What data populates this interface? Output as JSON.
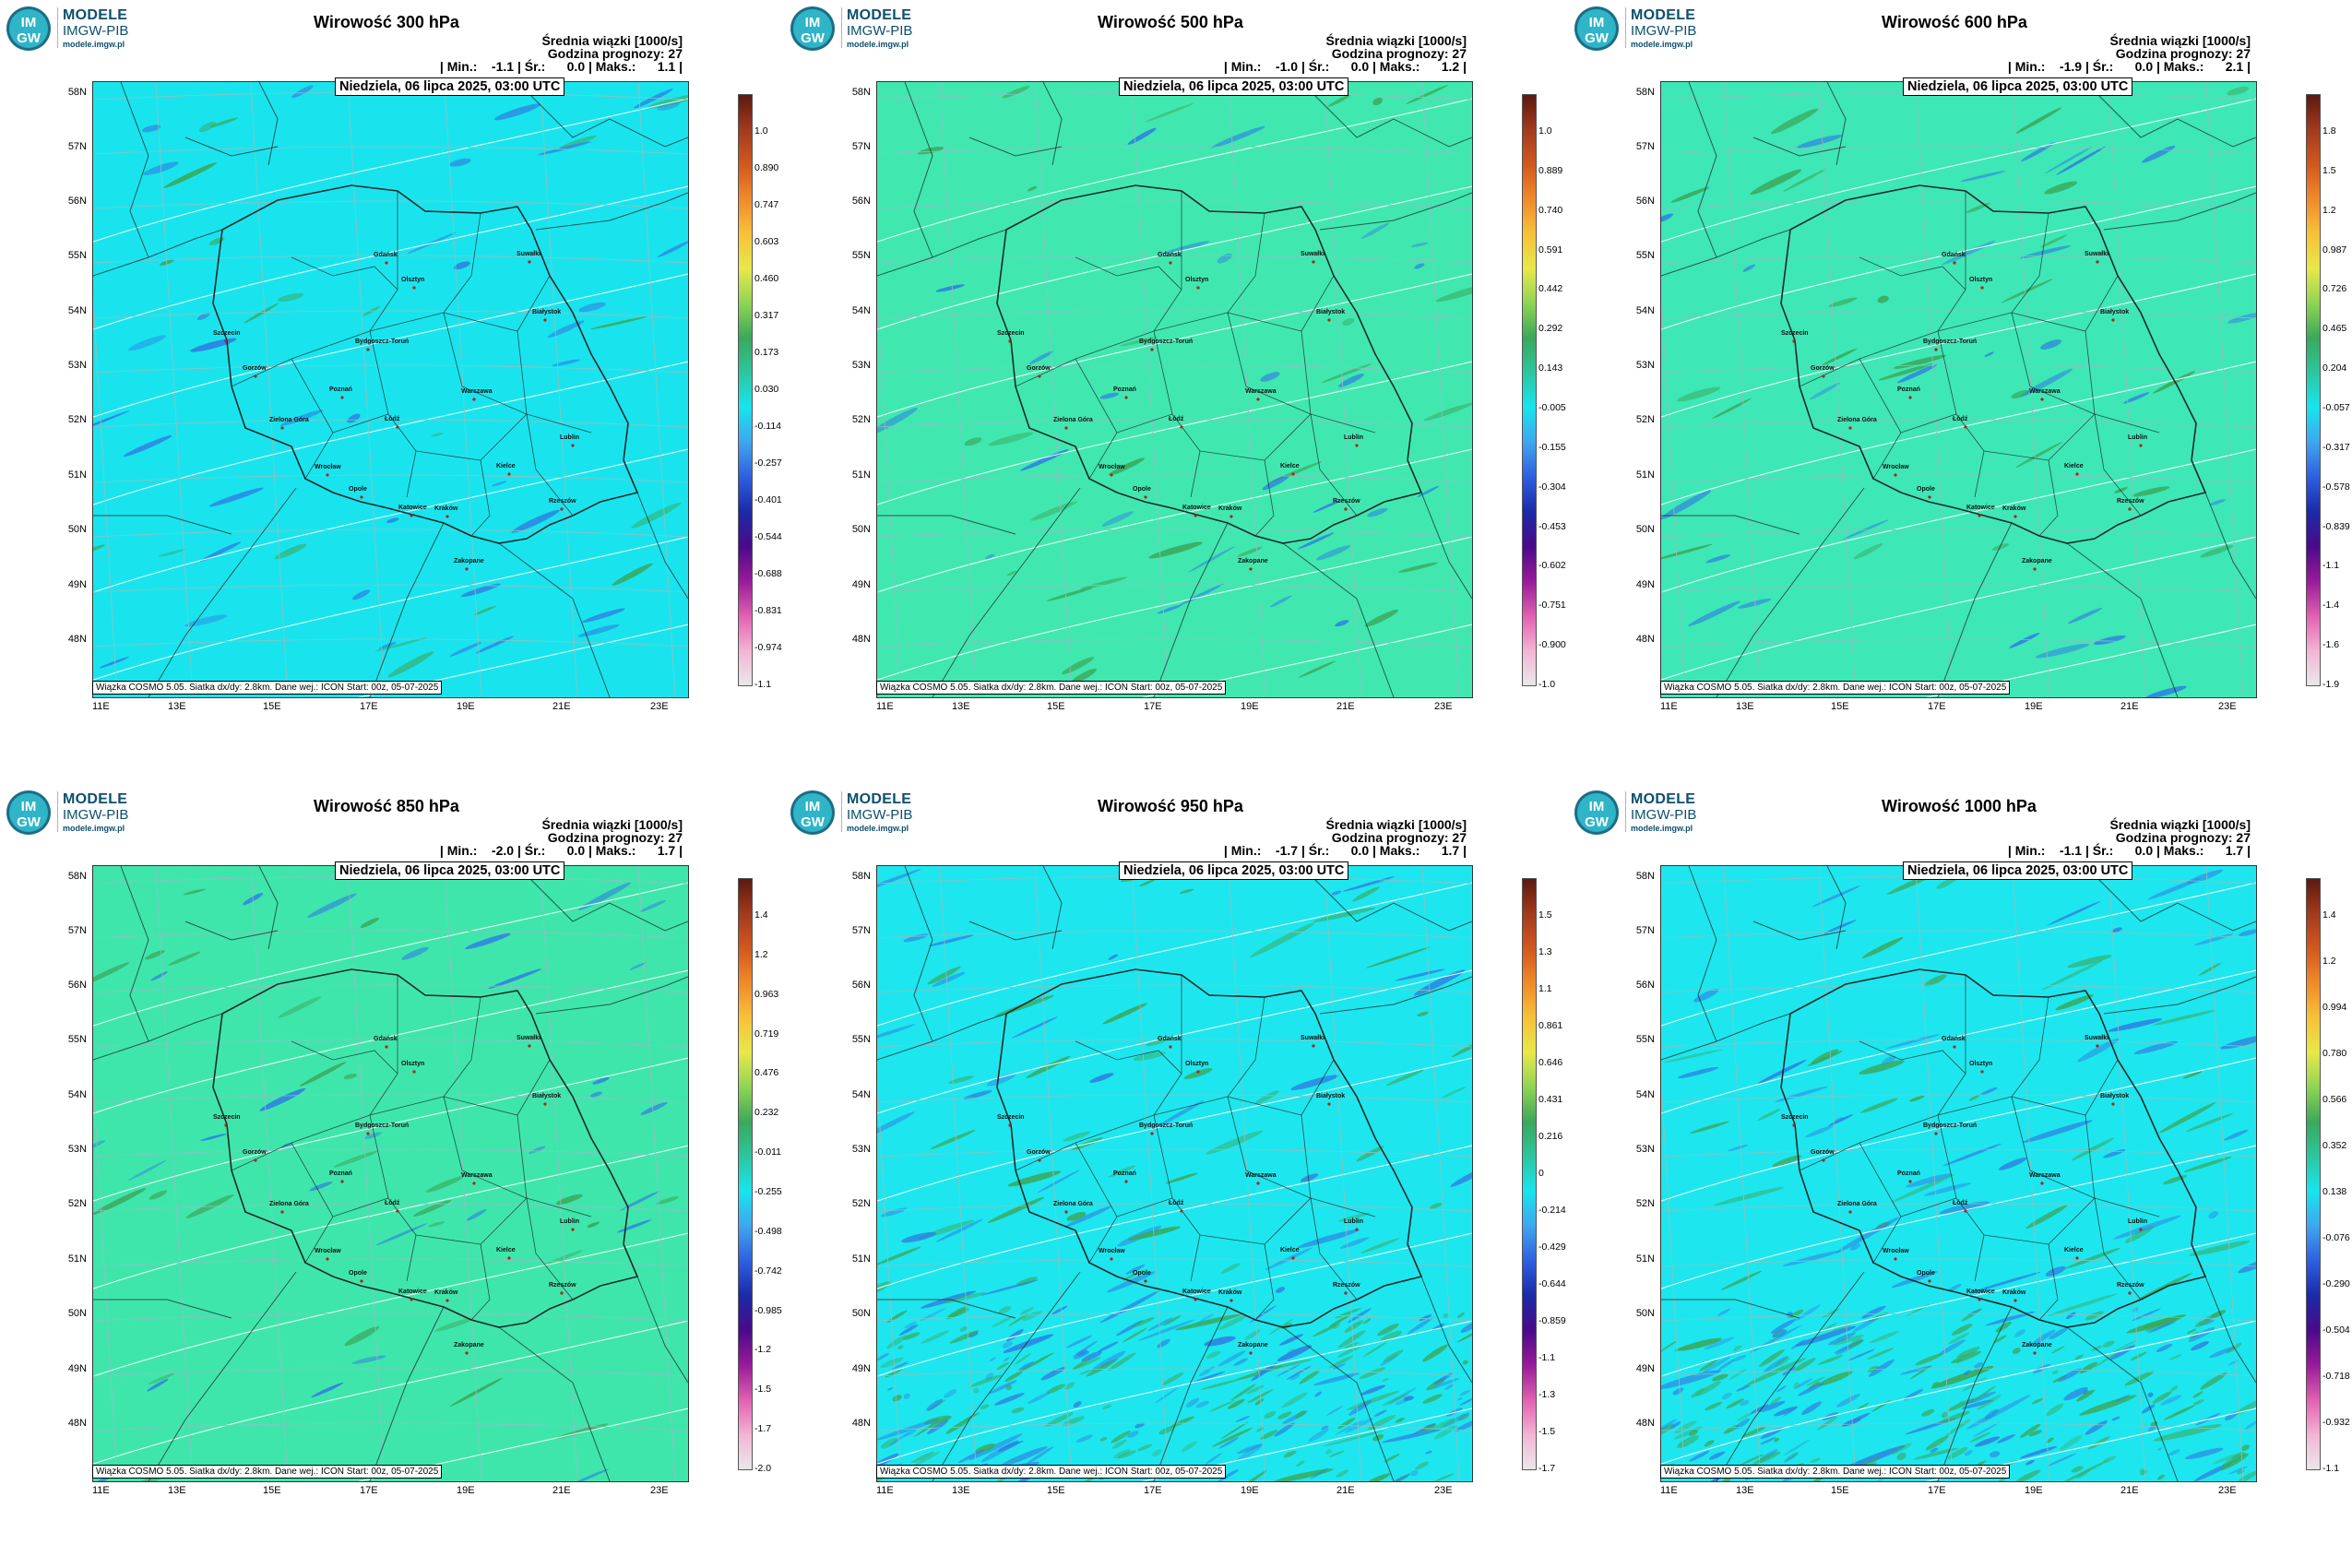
{
  "logo": {
    "line1": "MODELE",
    "line2": "IMGW-PIB",
    "line3": "modele.imgw.pl",
    "circle_line1": "IM",
    "circle_line2": "GW"
  },
  "common": {
    "subtitle": "Średnia wiązki [1000/s]",
    "forecast_hour": "Godzina prognozy: 27",
    "date": "Niedziela, 06 lipca 2025, 03:00 UTC",
    "footer": "Wiązka COSMO 5.05. Siatka dx/dy: 2.8km. Dane wej.: ICON Start: 00z, 05-07-2025",
    "lat_labels": [
      "58N",
      "57N",
      "56N",
      "55N",
      "54N",
      "53N",
      "52N",
      "51N",
      "50N",
      "49N",
      "48N"
    ],
    "lon_labels": [
      "11E",
      "13E",
      "15E",
      "17E",
      "19E",
      "21E",
      "23E"
    ],
    "cities": [
      "Gdańsk",
      "Olsztyn",
      "Suwałki",
      "Szczecin",
      "Bydgoszcz-Toruń",
      "Białystok",
      "Gorzów",
      "Poznań",
      "Warszawa",
      "Zielona Góra",
      "Łódź",
      "Lublin",
      "Wrocław",
      "Opole",
      "Kielce",
      "Rzeszów",
      "Katowice",
      "Kraków",
      "Zakopane"
    ]
  },
  "panels": [
    {
      "title": "Wirowość 300 hPa",
      "stats": "| Min.:    -1.1 | Śr.:      0.0 | Maks.:      1.1 |",
      "base_color": "#19e4ee",
      "cbar_labels": [
        "1.0",
        "0.890",
        "0.747",
        "0.603",
        "0.460",
        "0.317",
        "0.173",
        "0.030",
        "-0.114",
        "-0.257",
        "-0.401",
        "-0.544",
        "-0.688",
        "-0.831",
        "-0.974",
        "-1.1"
      ]
    },
    {
      "title": "Wirowość 500 hPa",
      "stats": "| Min.:    -1.0 | Śr.:      0.0 | Maks.:      1.2 |",
      "base_color": "#40e8b0",
      "cbar_labels": [
        "1.0",
        "0.889",
        "0.740",
        "0.591",
        "0.442",
        "0.292",
        "0.143",
        "-0.005",
        "-0.155",
        "-0.304",
        "-0.453",
        "-0.602",
        "-0.751",
        "-0.900",
        "-1.0"
      ]
    },
    {
      "title": "Wirowość 600 hPa",
      "stats": "| Min.:    -1.9 | Śr.:      0.0 | Maks.:      2.1 |",
      "base_color": "#3ee7b6",
      "cbar_labels": [
        "1.8",
        "1.5",
        "1.2",
        "0.987",
        "0.726",
        "0.465",
        "0.204",
        "-0.057",
        "-0.317",
        "-0.578",
        "-0.839",
        "-1.1",
        "-1.4",
        "-1.6",
        "-1.9"
      ]
    },
    {
      "title": "Wirowość 850 hPa",
      "stats": "| Min.:    -2.0 | Śr.:      0.0 | Maks.:      1.7 |",
      "base_color": "#3fe6ac",
      "cbar_labels": [
        "1.4",
        "1.2",
        "0.963",
        "0.719",
        "0.476",
        "0.232",
        "-0.011",
        "-0.255",
        "-0.498",
        "-0.742",
        "-0.985",
        "-1.2",
        "-1.5",
        "-1.7",
        "-2.0"
      ]
    },
    {
      "title": "Wirowość 950 hPa",
      "stats": "| Min.:    -1.7 | Śr.:      0.0 | Maks.:      1.7 |",
      "base_color": "#1ee6ee",
      "cbar_labels": [
        "1.5",
        "1.3",
        "1.1",
        "0.861",
        "0.646",
        "0.431",
        "0.216",
        "0",
        "-0.214",
        "-0.429",
        "-0.644",
        "-0.859",
        "-1.1",
        "-1.3",
        "-1.5",
        "-1.7"
      ]
    },
    {
      "title": "Wirowość 1000 hPa",
      "stats": "| Min.:    -1.1 | Śr.:      0.0 | Maks.:      1.7 |",
      "base_color": "#1ee6ee",
      "cbar_labels": [
        "1.4",
        "1.2",
        "0.994",
        "0.780",
        "0.566",
        "0.352",
        "0.138",
        "-0.076",
        "-0.290",
        "-0.504",
        "-0.718",
        "-0.932",
        "-1.1"
      ]
    }
  ],
  "colors": {
    "border": "#1c2a2a",
    "grid": "#8fbfc0",
    "contour": "#ffffff",
    "positive_band": "#3aa85a",
    "negative_band": "#2f7fe0"
  }
}
